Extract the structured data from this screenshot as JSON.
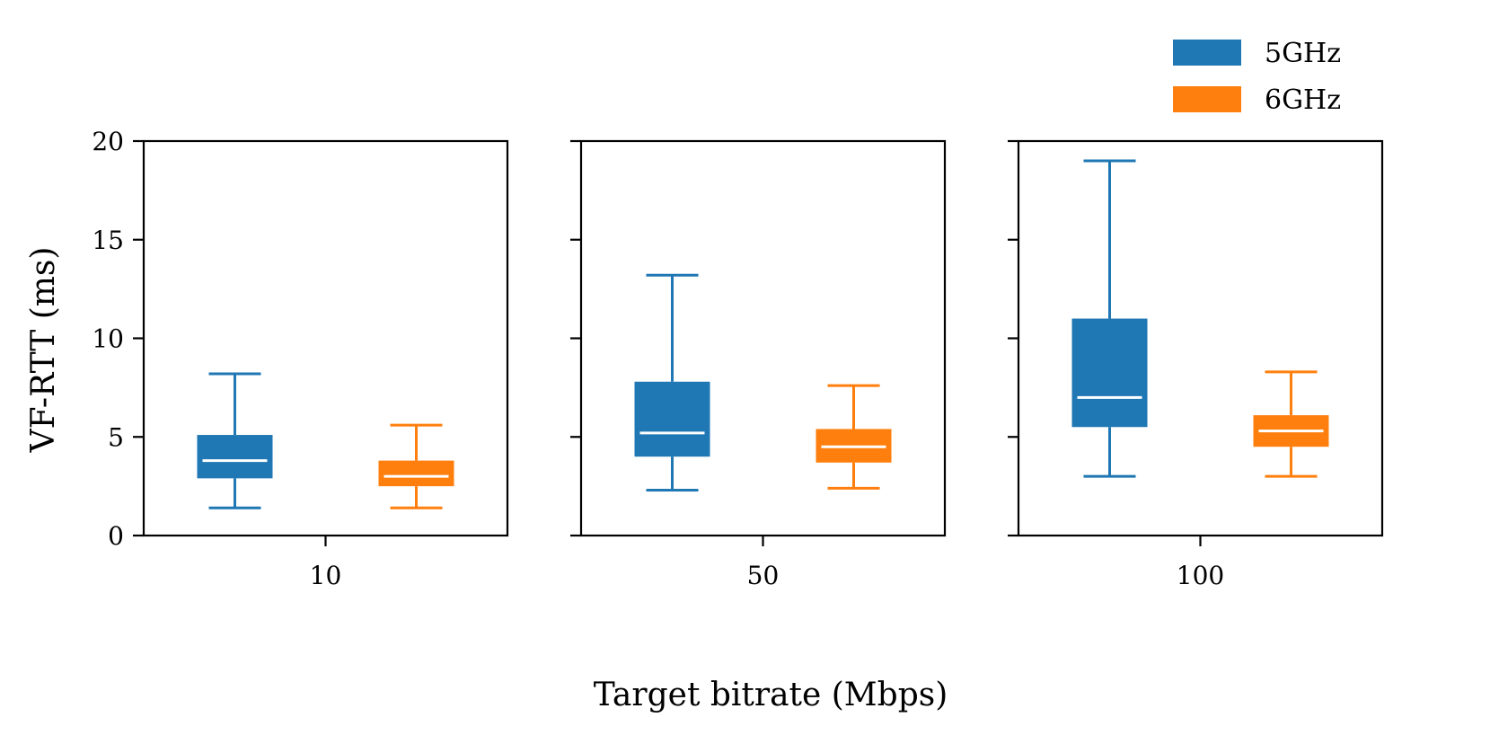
{
  "chart_data": {
    "type": "boxplot",
    "ylabel": "VF-RTT (ms)",
    "xlabel": "Target bitrate (Mbps)",
    "ylim": [
      0,
      20
    ],
    "yticks": [
      "0",
      "5",
      "10",
      "15",
      "20"
    ],
    "legend": {
      "position": "top-right"
    },
    "series": [
      {
        "name": "5GHz",
        "color": "#1f77b4"
      },
      {
        "name": "6GHz",
        "color": "#ff7f0e"
      }
    ],
    "panels": [
      {
        "category": "10",
        "boxes": [
          {
            "series": "5GHz",
            "whislo": 1.4,
            "q1": 2.9,
            "med": 3.8,
            "q3": 5.1,
            "whishi": 8.2
          },
          {
            "series": "6GHz",
            "whislo": 1.4,
            "q1": 2.5,
            "med": 3.0,
            "q3": 3.8,
            "whishi": 5.6
          }
        ]
      },
      {
        "category": "50",
        "boxes": [
          {
            "series": "5GHz",
            "whislo": 2.3,
            "q1": 4.0,
            "med": 5.2,
            "q3": 7.8,
            "whishi": 13.2
          },
          {
            "series": "6GHz",
            "whislo": 2.4,
            "q1": 3.7,
            "med": 4.5,
            "q3": 5.4,
            "whishi": 7.6
          }
        ]
      },
      {
        "category": "100",
        "boxes": [
          {
            "series": "5GHz",
            "whislo": 3.0,
            "q1": 5.5,
            "med": 7.0,
            "q3": 11.0,
            "whishi": 19.0
          },
          {
            "series": "6GHz",
            "whislo": 3.0,
            "q1": 4.5,
            "med": 5.3,
            "q3": 6.1,
            "whishi": 8.3
          }
        ]
      }
    ]
  }
}
